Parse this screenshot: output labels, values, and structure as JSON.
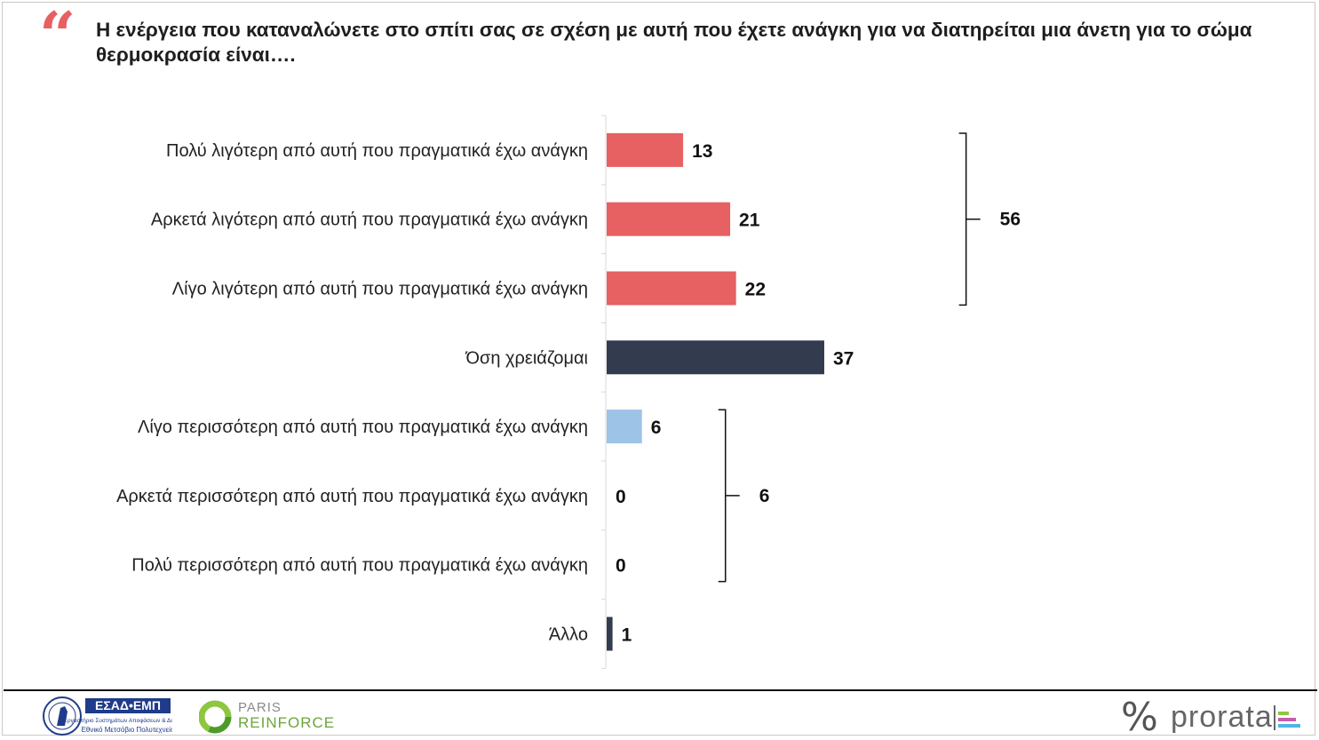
{
  "title": "Η ενέργεια που καταναλώνετε στο σπίτι σας σε σχέση με αυτή που έχετε ανάγκη για να διατηρείται μια άνετη για το σώμα θερμοκρασία είναι….",
  "quote_mark": "“",
  "colors": {
    "coral": "#e76062",
    "navy": "#323c4e",
    "lightblue": "#9dc3e6",
    "quote": "#e76062"
  },
  "chart_data": {
    "type": "bar",
    "orientation": "horizontal",
    "categories": [
      "Πολύ λιγότερη από αυτή που πραγματικά έχω ανάγκη",
      "Αρκετά λιγότερη από αυτή που πραγματικά έχω ανάγκη",
      "Λίγο λιγότερη από αυτή που πραγματικά έχω ανάγκη",
      "Όση χρειάζομαι",
      "Λίγο περισσότερη από αυτή που πραγματικά έχω ανάγκη",
      "Αρκετά περισσότερη από αυτή που πραγματικά έχω ανάγκη",
      "Πολύ περισσότερη από αυτή που πραγματικά έχω ανάγκη",
      "Άλλο"
    ],
    "values": [
      13,
      21,
      22,
      37,
      6,
      0,
      0,
      1
    ],
    "bar_colors": [
      "coral",
      "coral",
      "coral",
      "navy",
      "lightblue",
      "lightblue",
      "lightblue",
      "navy"
    ],
    "groups": [
      {
        "from": 0,
        "to": 2,
        "total": 56
      },
      {
        "from": 4,
        "to": 6,
        "total": 6
      }
    ],
    "xlim": [
      0,
      40
    ],
    "grid": false,
    "legend": "none"
  },
  "footer": {
    "esad_logo_text": "ΕΣΑΔ•ΕΜΠ",
    "esad_logo_sub1": "Εργαστήριο Συστημάτων Αποφάσεων & Διοίκησης",
    "esad_logo_sub2": "Εθνικό Μετσόβιο Πολυτεχνείο",
    "paris_line1": "PARIS",
    "paris_line2": "REINFORCE",
    "prorata_symbol": "%",
    "prorata_word": "prorata"
  }
}
